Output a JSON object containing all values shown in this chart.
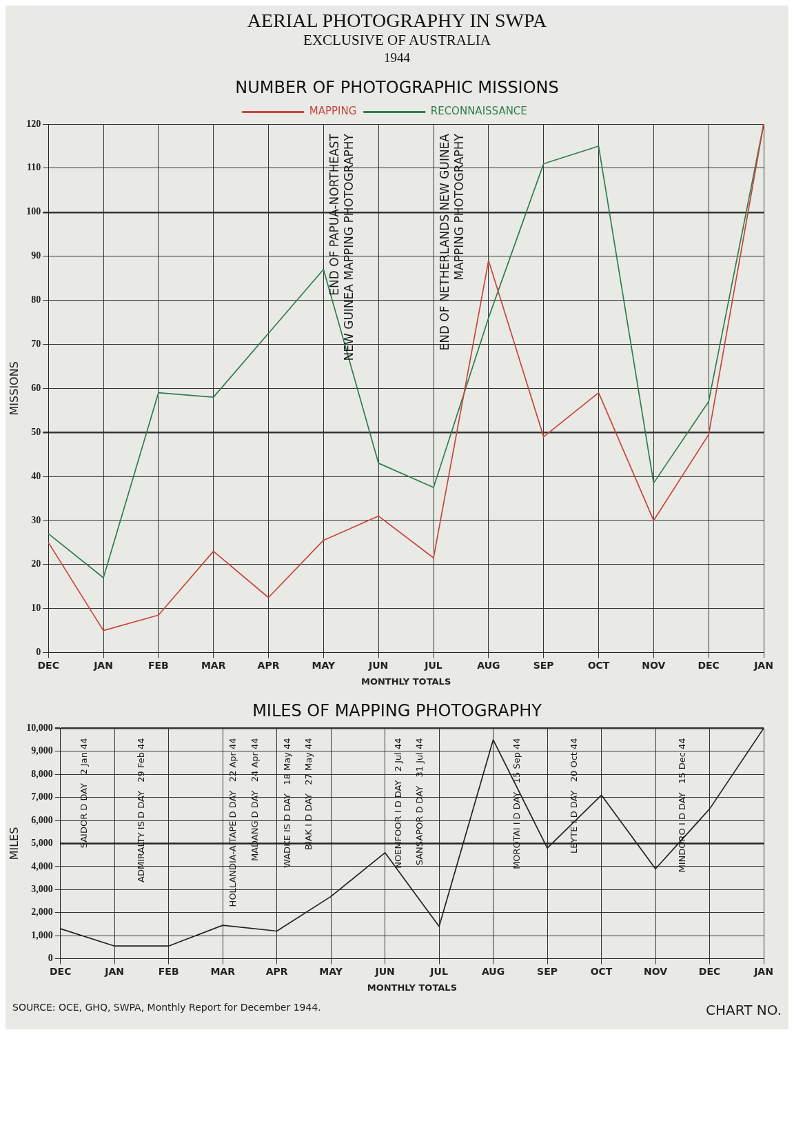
{
  "chart_data": [
    {
      "type": "line",
      "title": "AERIAL PHOTOGRAPHY IN SWPA",
      "subtitle": "EXCLUSIVE OF AUSTRALIA",
      "xlabel": "MONTHLY TOTALS",
      "ylabel": "MISSIONS",
      "annotations": [
        "1944",
        "NUMBER OF PHOTOGRAPHIC MISSIONS",
        "END OF PAPUA-NORTHEAST\nNEW GUINEA MAPPING PHOTOGRAPHY",
        "END OF NETHERLANDS NEW GUINEA\nMAPPING PHOTOGRAPHY"
      ],
      "categories": [
        "DEC",
        "JAN",
        "FEB",
        "MAR",
        "APR",
        "MAY",
        "JUN",
        "JUL",
        "AUG",
        "SEP",
        "OCT",
        "NOV",
        "DEC",
        "JAN"
      ],
      "series": [
        {
          "name": "MAPPING",
          "color": "#c8453c",
          "values": [
            25,
            5,
            8.5,
            23,
            12.5,
            25.5,
            31,
            21.5,
            89,
            49,
            59,
            30,
            49.5,
            120
          ]
        },
        {
          "name": "RECONNAISSANCE",
          "color": "#2e7d4f",
          "values": [
            27,
            17,
            59,
            58,
            72.5,
            87,
            43,
            37.5,
            76,
            111,
            115,
            38.5,
            57,
            120
          ]
        }
      ],
      "ylim": [
        0,
        120
      ],
      "yticks": [
        0,
        10,
        20,
        30,
        40,
        50,
        60,
        70,
        80,
        90,
        100,
        110,
        120
      ],
      "grid": true,
      "legend": "top"
    },
    {
      "type": "line",
      "title": "MILES OF MAPPING PHOTOGRAPHY",
      "xlabel": "MONTHLY TOTALS",
      "ylabel": "MILES",
      "annotations": [
        "SAIDOR D DAY   2 Jan 44",
        "ADMIRALTY IS D DAY   29 Feb 44",
        "HOLLANDIA-AITAPE D DAY   22 Apr 44",
        "MADANG D DAY   24 Apr 44",
        "WADKE IS D DAY   18 May 44",
        "BIAK I D DAY   27 May 44",
        "NOEMFOOR I D DAY   2 Jul 44",
        "SANSAPOR D DAY   31 Jul 44",
        "MOROTAI I D DAY   15 Sep 44",
        "LEYTE I D DAY   20 Oct 44",
        "MINDORO I D DAY   15 Dec 44",
        "SOURCE: OCE, GHQ, SWPA, Monthly Report for December 1944.",
        "CHART NO."
      ],
      "categories": [
        "DEC",
        "JAN",
        "FEB",
        "MAR",
        "APR",
        "MAY",
        "JUN",
        "JUL",
        "AUG",
        "SEP",
        "OCT",
        "NOV",
        "DEC",
        "JAN"
      ],
      "series": [
        {
          "color": "#222222",
          "values": [
            1300,
            550,
            550,
            1450,
            1200,
            2700,
            4600,
            1400,
            9500,
            4800,
            7100,
            3900,
            6500,
            10000
          ]
        }
      ],
      "ylim": [
        0,
        10000
      ],
      "yticks": [
        0,
        {
          "value": 1000,
          "label": "1,000"
        },
        {
          "value": 2000,
          "label": "2,000"
        },
        {
          "value": 3000,
          "label": "3,000"
        },
        {
          "value": 4000,
          "label": "4,000"
        },
        {
          "value": 5000,
          "label": "5,000"
        },
        {
          "value": 6000,
          "label": "6,000"
        },
        {
          "value": 7000,
          "label": "7,000"
        },
        {
          "value": 8000,
          "label": "8,000"
        },
        {
          "value": 9000,
          "label": "9,000"
        },
        {
          "value": 10000,
          "label": "10,000"
        }
      ],
      "grid": true,
      "ref_lines": [
        {
          "axis": "y",
          "value": 5000,
          "color": "#222222"
        }
      ]
    }
  ]
}
